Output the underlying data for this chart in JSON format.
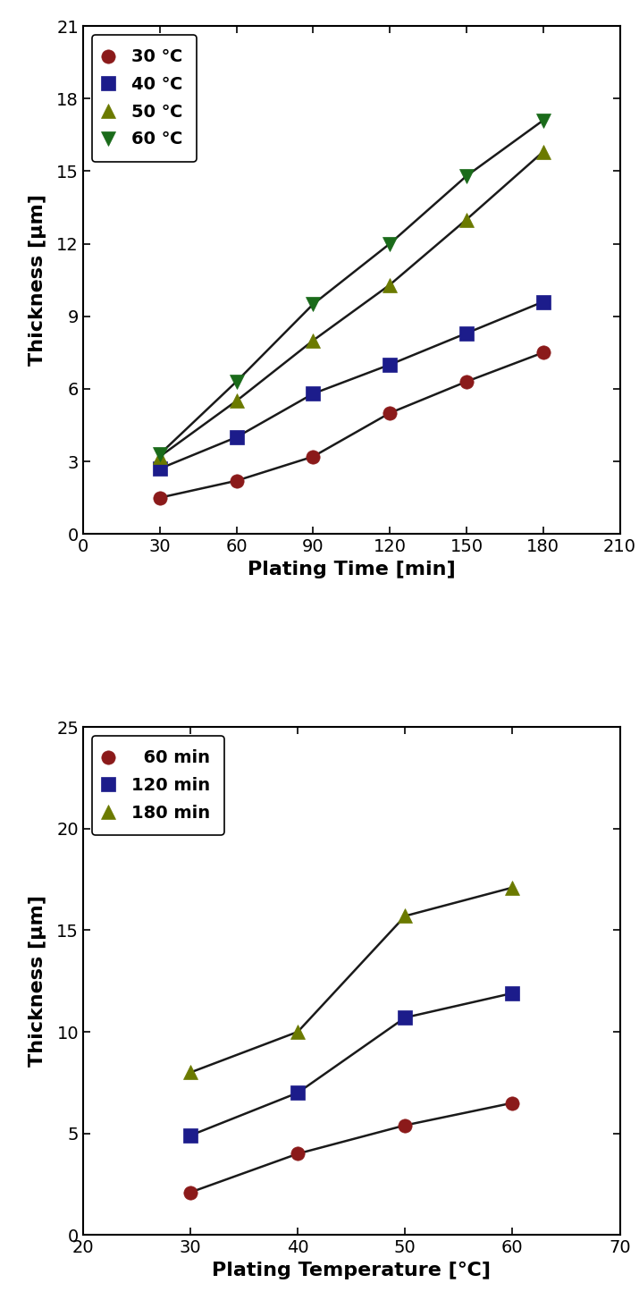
{
  "plot1": {
    "xlabel": "Plating Time [min]",
    "ylabel": "Thickness [μm]",
    "xlim": [
      0,
      210
    ],
    "ylim": [
      0,
      21
    ],
    "xticks": [
      0,
      30,
      60,
      90,
      120,
      150,
      180,
      210
    ],
    "yticks": [
      0,
      3,
      6,
      9,
      12,
      15,
      18,
      21
    ],
    "series": [
      {
        "label": "30 ℃",
        "x": [
          30,
          60,
          90,
          120,
          150,
          180
        ],
        "y": [
          1.5,
          2.2,
          3.2,
          5.0,
          6.3,
          7.5
        ],
        "color": "#8B1A1A",
        "marker": "o",
        "marker_size": 11
      },
      {
        "label": "40 ℃",
        "x": [
          30,
          60,
          90,
          120,
          150,
          180
        ],
        "y": [
          2.7,
          4.0,
          5.8,
          7.0,
          8.3,
          9.6
        ],
        "color": "#1C1C8B",
        "marker": "s",
        "marker_size": 11
      },
      {
        "label": "50 ℃",
        "x": [
          30,
          60,
          90,
          120,
          150,
          180
        ],
        "y": [
          3.2,
          5.5,
          8.0,
          10.3,
          13.0,
          15.8
        ],
        "color": "#6B7A00",
        "marker": "^",
        "marker_size": 11
      },
      {
        "label": "60 ℃",
        "x": [
          30,
          60,
          90,
          120,
          150,
          180
        ],
        "y": [
          3.3,
          6.3,
          9.5,
          12.0,
          14.8,
          17.1
        ],
        "color": "#1A6B1A",
        "marker": "v",
        "marker_size": 11
      }
    ]
  },
  "plot2": {
    "xlabel": "Plating Temperature [℃]",
    "ylabel": "Thickness [μm]",
    "xlim": [
      20,
      70
    ],
    "ylim": [
      0,
      25
    ],
    "xticks": [
      20,
      30,
      40,
      50,
      60,
      70
    ],
    "yticks": [
      0,
      5,
      10,
      15,
      20,
      25
    ],
    "series": [
      {
        "label": "  60 min",
        "x": [
          30,
          40,
          50,
          60
        ],
        "y": [
          2.1,
          4.0,
          5.4,
          6.5
        ],
        "color": "#8B1A1A",
        "marker": "o",
        "marker_size": 11
      },
      {
        "label": "120 min",
        "x": [
          30,
          40,
          50,
          60
        ],
        "y": [
          4.9,
          7.0,
          10.7,
          11.9
        ],
        "color": "#1C1C8B",
        "marker": "s",
        "marker_size": 11
      },
      {
        "label": "180 min",
        "x": [
          30,
          40,
          50,
          60
        ],
        "y": [
          8.0,
          10.0,
          15.7,
          17.1
        ],
        "color": "#6B7A00",
        "marker": "^",
        "marker_size": 11
      }
    ]
  },
  "fig_width": 7.15,
  "fig_height": 14.54,
  "dpi": 100,
  "line_color": "#1a1a1a",
  "line_width": 1.8,
  "tick_fontsize": 14,
  "label_fontsize": 16,
  "legend_fontsize": 14
}
